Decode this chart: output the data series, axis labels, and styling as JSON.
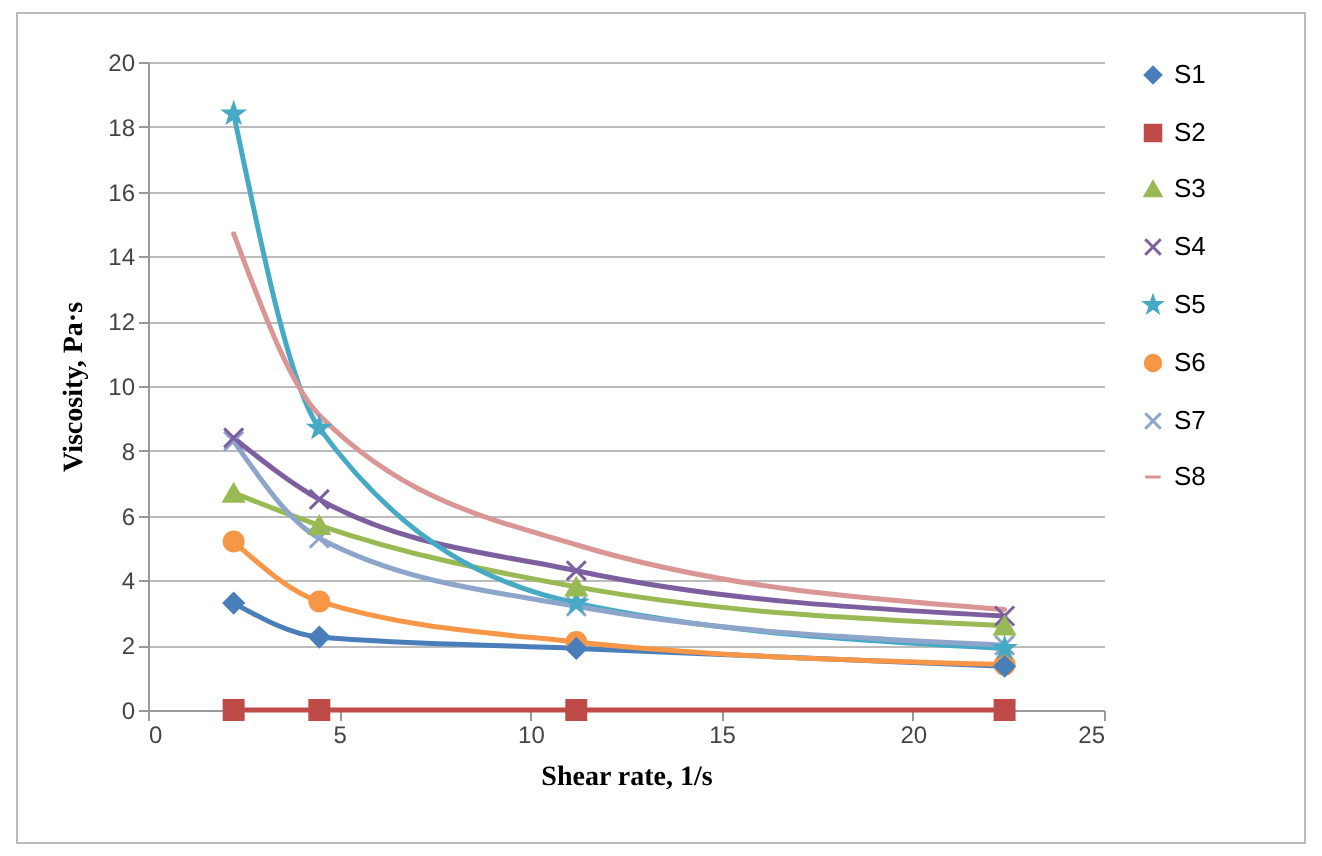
{
  "chart_data": {
    "type": "line",
    "xlabel": "Shear rate, 1/s",
    "ylabel": "Viscosity, Pa·s",
    "x": [
      2.24,
      4.48,
      11.2,
      22.4
    ],
    "series": [
      {
        "name": "S1",
        "color": "#4a7ebb",
        "marker": "diamond",
        "values": [
          3.3,
          2.25,
          1.9,
          1.35
        ]
      },
      {
        "name": "S2",
        "color": "#be4b48",
        "marker": "square",
        "values": [
          0,
          0,
          0,
          0
        ]
      },
      {
        "name": "S3",
        "color": "#98b954",
        "marker": "triangle",
        "values": [
          6.7,
          5.7,
          3.8,
          2.6
        ]
      },
      {
        "name": "S4",
        "color": "#7d5fa0",
        "marker": "cross",
        "values": [
          8.4,
          6.5,
          4.3,
          2.9
        ]
      },
      {
        "name": "S5",
        "color": "#46aac5",
        "marker": "star",
        "values": [
          18.4,
          8.7,
          3.3,
          1.9
        ]
      },
      {
        "name": "S6",
        "color": "#f79646",
        "marker": "circle",
        "values": [
          5.2,
          3.35,
          2.1,
          1.4
        ]
      },
      {
        "name": "S7",
        "color": "#8ea5cb",
        "marker": "cross",
        "values": [
          8.3,
          5.3,
          3.2,
          2.0
        ]
      },
      {
        "name": "S8",
        "color": "#d99694",
        "marker": "none",
        "values": [
          14.7,
          9.1,
          5.1,
          3.1
        ]
      }
    ],
    "xlim": [
      0,
      25
    ],
    "xticks": [
      0,
      5,
      10,
      15,
      20,
      25
    ],
    "ylim": [
      0,
      20
    ],
    "yticks": [
      0,
      2,
      4,
      6,
      8,
      10,
      12,
      14,
      16,
      18,
      20
    ],
    "grid": "y",
    "legend": "right"
  }
}
